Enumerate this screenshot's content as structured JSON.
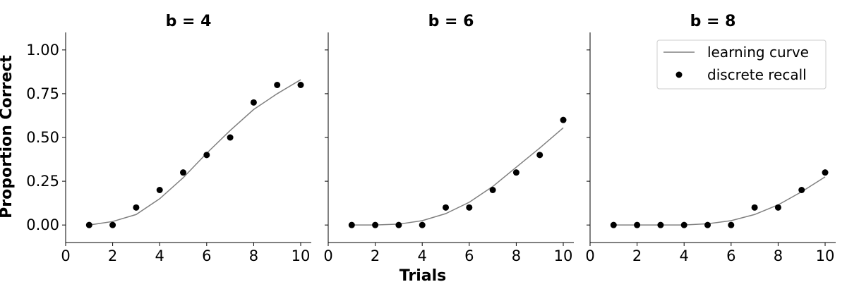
{
  "chart_data": {
    "type": "line+scatter",
    "xlabel": "Trials",
    "ylabel": "Proportion Correct",
    "xlim": [
      0,
      10.45
    ],
    "ylim": [
      -0.1,
      1.1
    ],
    "xticks": [
      "0",
      "2",
      "4",
      "6",
      "8",
      "10"
    ],
    "yticks": [
      "0.00",
      "0.25",
      "0.50",
      "0.75",
      "1.00"
    ],
    "grid": false,
    "legend": {
      "placement": "top-right",
      "panel": 2,
      "entries": [
        "learning curve",
        "discrete recall"
      ]
    },
    "colors": {
      "curve": "#808080",
      "points": "#000000"
    },
    "panels": [
      {
        "title": "b = 4",
        "x": [
          1,
          2,
          3,
          4,
          5,
          6,
          7,
          8,
          9,
          10
        ],
        "series": [
          {
            "name": "learning curve",
            "kind": "line",
            "values": [
              0.0,
              0.02,
              0.06,
              0.15,
              0.27,
              0.41,
              0.54,
              0.66,
              0.75,
              0.83
            ]
          },
          {
            "name": "discrete recall",
            "kind": "scatter",
            "values": [
              0.0,
              0.0,
              0.1,
              0.2,
              0.3,
              0.4,
              0.5,
              0.7,
              0.8,
              0.8
            ]
          }
        ]
      },
      {
        "title": "b = 6",
        "x": [
          1,
          2,
          3,
          4,
          5,
          6,
          7,
          8,
          9,
          10
        ],
        "series": [
          {
            "name": "learning curve",
            "kind": "line",
            "values": [
              0.0,
              0.0,
              0.005,
              0.025,
              0.065,
              0.13,
              0.22,
              0.33,
              0.44,
              0.555
            ]
          },
          {
            "name": "discrete recall",
            "kind": "scatter",
            "values": [
              0.0,
              0.0,
              0.0,
              0.0,
              0.1,
              0.1,
              0.2,
              0.3,
              0.4,
              0.6
            ]
          }
        ]
      },
      {
        "title": "b = 8",
        "x": [
          1,
          2,
          3,
          4,
          5,
          6,
          7,
          8,
          9,
          10
        ],
        "series": [
          {
            "name": "learning curve",
            "kind": "line",
            "values": [
              0.0,
              0.0,
              0.0,
              0.0,
              0.007,
              0.025,
              0.06,
              0.115,
              0.19,
              0.275
            ]
          },
          {
            "name": "discrete recall",
            "kind": "scatter",
            "values": [
              0.0,
              0.0,
              0.0,
              0.0,
              0.0,
              0.0,
              0.1,
              0.1,
              0.2,
              0.3
            ]
          }
        ]
      }
    ]
  }
}
